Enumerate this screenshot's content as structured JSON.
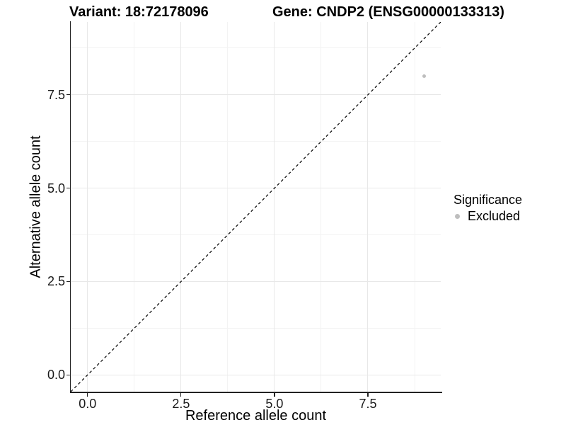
{
  "figure": {
    "titles": {
      "variant": "Variant: 18:72178096",
      "gene": "Gene: CNDP2 (ENSG00000133313)"
    }
  },
  "chart_data": {
    "type": "scatter",
    "title_left": "Variant: 18:72178096",
    "title_right": "Gene: CNDP2 (ENSG00000133313)",
    "xlabel": "Reference allele count",
    "ylabel": "Alternative allele count",
    "xlim": [
      -0.45,
      9.45
    ],
    "ylim": [
      -0.45,
      9.45
    ],
    "x_major_ticks": [
      0.0,
      2.5,
      5.0,
      7.5
    ],
    "y_major_ticks": [
      0.0,
      2.5,
      5.0,
      7.5
    ],
    "x_minor_gridlines": [
      1.25,
      3.75,
      6.25,
      8.75
    ],
    "y_minor_gridlines": [
      1.25,
      3.75,
      6.25,
      8.75
    ],
    "grid": "major+minor",
    "tick_label_format": "one_decimal",
    "identity_line": {
      "style": "dashed",
      "x1": -0.45,
      "y1": -0.45,
      "x2": 9.45,
      "y2": 9.45,
      "color": "#000000"
    },
    "series": [
      {
        "name": "Excluded",
        "color": "#bebebe",
        "points": [
          {
            "x": 9,
            "y": 8
          }
        ]
      }
    ],
    "legend": {
      "position": "right",
      "title": "Significance",
      "entries": [
        {
          "label": "Excluded",
          "color": "#bebebe"
        }
      ]
    }
  },
  "colors": {
    "background": "#ffffff",
    "grid_major": "#e8e8e8",
    "grid_minor": "#f3f3f3",
    "axis_line": "#222222",
    "point": "#bebebe",
    "dashed_line": "#000000"
  }
}
